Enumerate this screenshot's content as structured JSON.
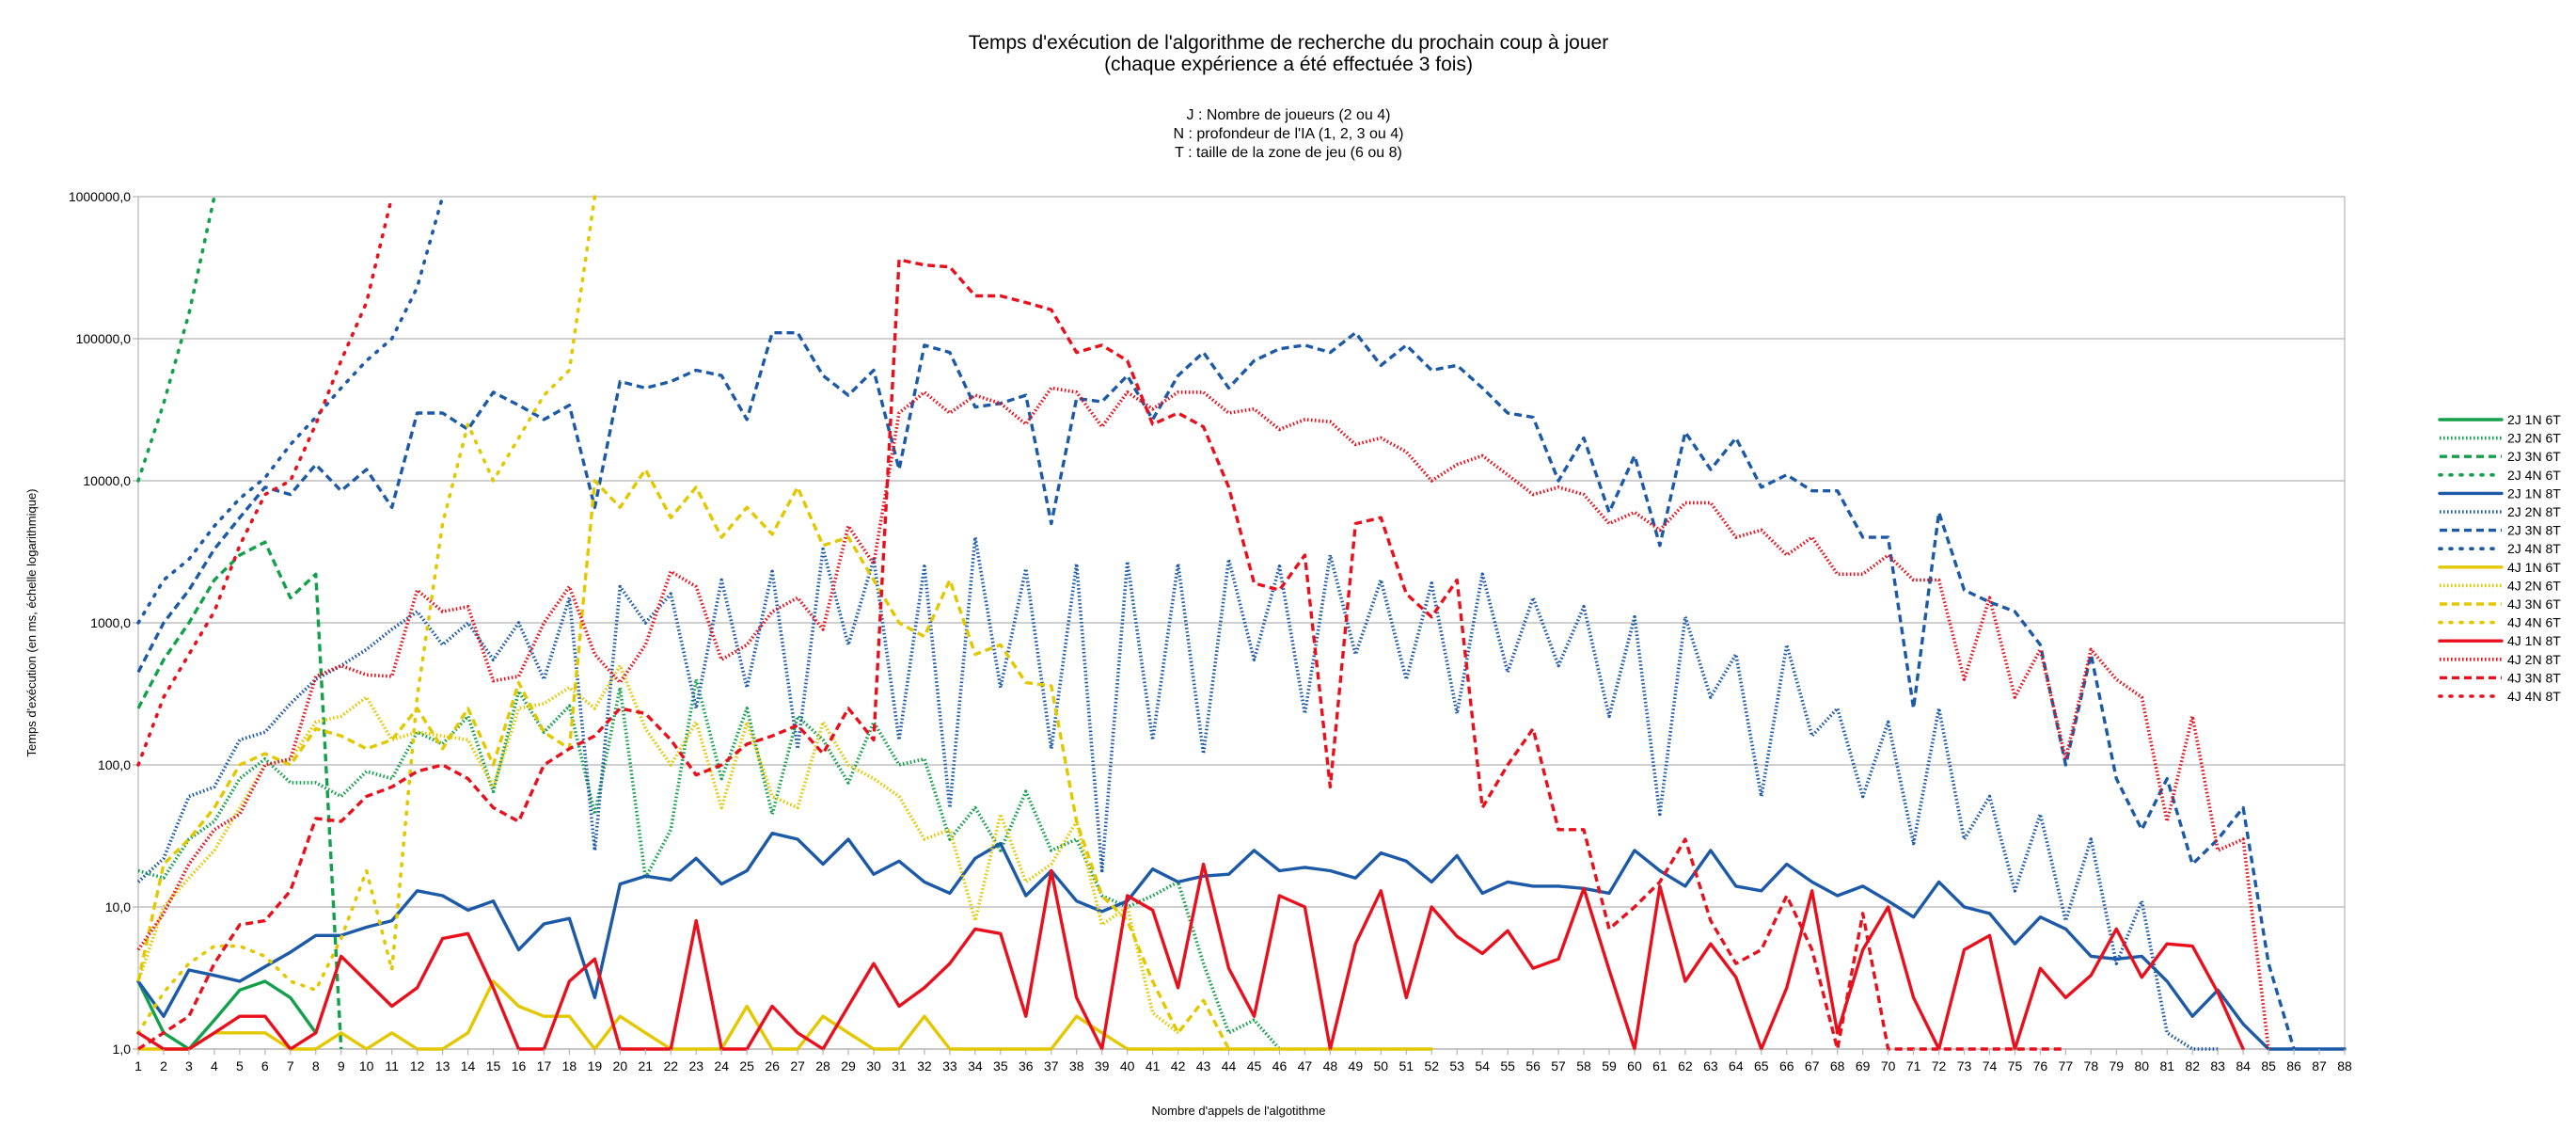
{
  "chart_data": {
    "type": "line",
    "title": [
      "Temps d'exécution de l'algorithme de recherche du prochain coup à jouer",
      "(chaque expérience a été effectuée 3 fois)"
    ],
    "subtitle": [
      "J : Nombre de joueurs (2 ou 4)",
      "N : profondeur de l'IA (1, 2, 3 ou 4)",
      "T : taille de la zone de jeu (6 ou 8)"
    ],
    "xlabel": "Nombre d'appels de l'algotithme",
    "ylabel": "Temps d'exécution (en ms, échelle logarithmique)",
    "yscale": "log",
    "ylim": [
      1,
      1000000
    ],
    "yticks": [
      "1,0",
      "10,0",
      "100,0",
      "1000,0",
      "10000,0",
      "100000,0",
      "1000000,0"
    ],
    "xlim": [
      1,
      88
    ],
    "grid": "horizontal",
    "legend_position": "right",
    "colors": {
      "green": "#13a04b",
      "blue": "#1c5aa8",
      "yellow": "#e3c800",
      "red": "#e8101c"
    },
    "series": [
      {
        "name": "2J 1N 6T",
        "color": "green",
        "dash": "solid",
        "x_start": 1,
        "values": [
          3,
          1.3,
          1,
          1.6,
          2.6,
          3,
          2.3,
          1.3
        ]
      },
      {
        "name": "2J 2N 6T",
        "color": "green",
        "dash": "dot",
        "x_start": 1,
        "values": [
          18,
          16,
          30,
          40,
          80,
          110,
          75,
          75,
          60,
          90,
          80,
          170,
          140,
          220,
          65,
          330,
          170,
          260,
          45,
          350,
          16,
          35,
          400,
          80,
          250,
          45,
          220,
          150,
          75,
          200,
          100,
          110,
          30,
          50,
          25,
          65,
          25,
          30,
          12,
          10,
          12,
          15,
          4,
          1.3,
          1.6,
          1
        ]
      },
      {
        "name": "2J 3N 6T",
        "color": "green",
        "dash": "dash",
        "x_start": 1,
        "values": [
          250,
          550,
          1000,
          2000,
          3000,
          3700,
          1500,
          2200,
          1
        ]
      },
      {
        "name": "2J 4N 6T",
        "color": "green",
        "dash": "sparse",
        "x_start": 1,
        "values": [
          10000,
          35000,
          150000,
          1000000
        ]
      },
      {
        "name": "2J 1N 8T",
        "color": "blue",
        "dash": "solid",
        "x_start": 1,
        "values": [
          3,
          1.7,
          3.6,
          3.3,
          3,
          3.8,
          4.8,
          6.3,
          6.3,
          7.2,
          8,
          13,
          12,
          9.5,
          11,
          5,
          7.6,
          8.3,
          2.3,
          14.5,
          16.5,
          15.5,
          22,
          14.5,
          18,
          33,
          30,
          20,
          30,
          17,
          21,
          15,
          12.5,
          22,
          28,
          12,
          18,
          11,
          9.3,
          11,
          18.5,
          15,
          16.5,
          17,
          25,
          18,
          19,
          18,
          16,
          24,
          21,
          15,
          23,
          12.5,
          15,
          14,
          14,
          13.5,
          12.5,
          25,
          18,
          14,
          25,
          14,
          13,
          20,
          15,
          12,
          14,
          11,
          8.5,
          15,
          10,
          9,
          5.5,
          8.5,
          7,
          4.5,
          4.3,
          4.5,
          3,
          1.7,
          2.6,
          1.5,
          1,
          1,
          1,
          1
        ]
      },
      {
        "name": "2J 2N 8T",
        "color": "blue",
        "dash": "dot",
        "x_start": 1,
        "values": [
          15,
          22,
          60,
          70,
          150,
          170,
          270,
          400,
          500,
          650,
          900,
          1200,
          700,
          1000,
          550,
          1000,
          400,
          1500,
          25,
          1800,
          1000,
          1600,
          250,
          2000,
          350,
          2300,
          130,
          3300,
          700,
          2800,
          150,
          2500,
          50,
          4000,
          350,
          2400,
          130,
          2600,
          18,
          2700,
          150,
          2600,
          120,
          2800,
          550,
          2500,
          230,
          3000,
          600,
          2000,
          400,
          1900,
          230,
          2200,
          450,
          1500,
          500,
          1300,
          220,
          1100,
          45,
          1100,
          300,
          600,
          60,
          700,
          160,
          250,
          60,
          200,
          28,
          250,
          30,
          60,
          13,
          45,
          8,
          30,
          4,
          11,
          1.3,
          1,
          1
        ]
      },
      {
        "name": "2J 3N 8T",
        "color": "blue",
        "dash": "dash",
        "x_start": 1,
        "values": [
          450,
          1000,
          1700,
          3300,
          5500,
          9000,
          8000,
          13000,
          8500,
          12000,
          6500,
          30000,
          30000,
          23000,
          42000,
          34000,
          27000,
          34000,
          6500,
          50000,
          45000,
          50000,
          60000,
          55000,
          27000,
          110000,
          110000,
          55000,
          40000,
          60000,
          12000,
          90000,
          80000,
          33000,
          35000,
          40000,
          5000,
          38000,
          36000,
          55000,
          27000,
          55000,
          80000,
          45000,
          70000,
          85000,
          90000,
          80000,
          110000,
          65000,
          90000,
          60000,
          65000,
          45000,
          30000,
          28000,
          10000,
          20000,
          6000,
          15000,
          3500,
          22000,
          12000,
          20000,
          9000,
          11000,
          8500,
          8500,
          4000,
          4000,
          250,
          6000,
          1700,
          1400,
          1200,
          700,
          100,
          600,
          80,
          35,
          80,
          20,
          30,
          50,
          4,
          1
        ]
      },
      {
        "name": "2J 4N 8T",
        "color": "blue",
        "dash": "sparse",
        "x_start": 1,
        "values": [
          1000,
          2000,
          2800,
          4800,
          7500,
          10500,
          18000,
          28000,
          45000,
          70000,
          100000,
          230000,
          1000000
        ]
      },
      {
        "name": "4J 1N 6T",
        "color": "yellow",
        "dash": "solid",
        "x_start": 1,
        "values": [
          1,
          1,
          1,
          1.3,
          1.3,
          1.3,
          1,
          1,
          1.3,
          1,
          1.3,
          1,
          1,
          1.3,
          3,
          2,
          1.7,
          1.7,
          1,
          1.7,
          1.3,
          1,
          1,
          1,
          2,
          1,
          1,
          1.7,
          1.3,
          1,
          1,
          1.7,
          1,
          1,
          1,
          1,
          1,
          1.7,
          1.3,
          1,
          1,
          1,
          1,
          1,
          1,
          1,
          1,
          1,
          1,
          1,
          1,
          1
        ]
      },
      {
        "name": "4J 2N 6T",
        "color": "yellow",
        "dash": "dot",
        "x_start": 1,
        "values": [
          3,
          10,
          16,
          25,
          50,
          100,
          110,
          200,
          220,
          300,
          150,
          170,
          160,
          150,
          70,
          250,
          270,
          350,
          250,
          500,
          180,
          100,
          200,
          50,
          200,
          60,
          50,
          200,
          100,
          80,
          60,
          30,
          35,
          8,
          45,
          15,
          20,
          40,
          7.5,
          10,
          1.8,
          1.3
        ]
      },
      {
        "name": "4J 3N 6T",
        "color": "yellow",
        "dash": "dash",
        "x_start": 1,
        "values": [
          3,
          20,
          30,
          50,
          100,
          120,
          100,
          180,
          160,
          130,
          150,
          250,
          130,
          250,
          100,
          380,
          170,
          130,
          10000,
          6500,
          12000,
          5500,
          9000,
          4000,
          6500,
          4200,
          9000,
          3500,
          4000,
          2000,
          1000,
          800,
          2000,
          600,
          700,
          380,
          360,
          40,
          12,
          8,
          3,
          1.3,
          2.2,
          1
        ]
      },
      {
        "name": "4J 4N 6T",
        "color": "yellow",
        "dash": "sparse",
        "x_start": 1,
        "values": [
          1.3,
          2.5,
          4,
          5.3,
          5.3,
          4.5,
          3,
          2.6,
          6,
          18,
          3.6,
          300,
          5000,
          25000,
          10000,
          20000,
          40000,
          60000,
          1000000
        ]
      },
      {
        "name": "4J 1N 8T",
        "color": "red",
        "dash": "solid",
        "x_start": 1,
        "values": [
          1.3,
          1,
          1,
          1.3,
          1.7,
          1.7,
          1,
          1.3,
          4.5,
          3,
          2,
          2.7,
          6,
          6.5,
          2.7,
          1,
          1,
          3,
          4.3,
          1,
          1,
          1,
          8,
          1,
          1,
          2,
          1.3,
          1,
          2,
          4,
          2,
          2.7,
          4,
          7,
          6.5,
          1.7,
          18,
          2.3,
          1,
          12,
          9.5,
          2.7,
          20,
          3.7,
          1.7,
          12,
          10,
          1,
          5.5,
          13,
          2.3,
          10,
          6.2,
          4.7,
          6.8,
          3.7,
          4.3,
          13.5,
          3.6,
          1,
          14,
          3,
          5.5,
          3.2,
          1,
          2.7,
          13,
          1.3,
          5,
          10,
          2.3,
          1,
          5,
          6.3,
          1,
          3.7,
          2.3,
          3.3,
          7,
          3.2,
          5.5,
          5.3,
          2.5,
          1
        ]
      },
      {
        "name": "4J 2N 8T",
        "color": "red",
        "dash": "dot",
        "x_start": 1,
        "values": [
          5,
          9,
          20,
          35,
          45,
          100,
          110,
          420,
          500,
          430,
          420,
          1700,
          1200,
          1300,
          390,
          420,
          1000,
          1800,
          600,
          380,
          700,
          2300,
          1800,
          550,
          700,
          1200,
          1500,
          900,
          4800,
          2600,
          30000,
          42000,
          30000,
          40000,
          35000,
          25000,
          45000,
          42000,
          24000,
          42000,
          32000,
          42000,
          42000,
          30000,
          32000,
          23000,
          27000,
          26000,
          18000,
          20000,
          16000,
          10000,
          13000,
          15000,
          11000,
          8000,
          9000,
          8000,
          5000,
          6000,
          4500,
          7000,
          7000,
          4000,
          4500,
          3000,
          4000,
          2200,
          2200,
          3000,
          2000,
          2000,
          400,
          1500,
          300,
          650,
          110,
          650,
          400,
          300,
          40,
          220,
          25,
          30,
          1
        ]
      },
      {
        "name": "4J 3N 8T",
        "color": "red",
        "dash": "dash",
        "x_start": 1,
        "values": [
          1,
          1.3,
          1.7,
          4,
          7.5,
          8,
          13,
          42,
          40,
          60,
          70,
          90,
          100,
          80,
          50,
          40,
          100,
          130,
          160,
          250,
          230,
          150,
          85,
          100,
          140,
          160,
          190,
          120,
          250,
          150,
          360000,
          330000,
          320000,
          200000,
          200000,
          180000,
          160000,
          80000,
          90000,
          70000,
          25000,
          30000,
          24000,
          9000,
          1900,
          1700,
          3000,
          70,
          5000,
          5500,
          1600,
          1100,
          2000,
          50,
          100,
          180,
          35,
          35,
          7,
          10,
          15,
          30,
          8,
          4,
          5,
          12,
          5,
          1,
          9,
          1,
          1,
          1,
          1,
          1,
          1,
          1,
          1
        ]
      },
      {
        "name": "4J 4N 8T",
        "color": "red",
        "dash": "sparse",
        "x_start": 1,
        "values": [
          100,
          300,
          600,
          1200,
          3500,
          8000,
          10000,
          25000,
          70000,
          180000,
          1000000
        ]
      }
    ]
  }
}
